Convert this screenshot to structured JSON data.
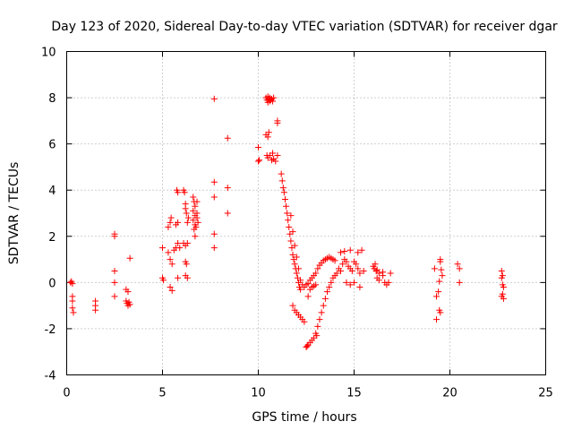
{
  "chart_data": {
    "type": "scatter",
    "title": "Day 123 of 2020, Sidereal Day-to-day VTEC variation (SDTVAR) for receiver dgar",
    "xlabel": "GPS time / hours",
    "ylabel": "SDTVAR / TECUs",
    "xlim": [
      0,
      25
    ],
    "ylim": [
      -4,
      10
    ],
    "xticks": [
      "0",
      "5",
      "10",
      "15",
      "20",
      "25"
    ],
    "yticks": [
      "-4",
      "-2",
      "0",
      "2",
      "4",
      "6",
      "8",
      "10"
    ],
    "grid": true,
    "marker": "+",
    "series_color": "#ff0000",
    "series": [
      {
        "name": "SDTVAR",
        "points": [
          [
            0.2,
            0.0
          ],
          [
            0.25,
            0.05
          ],
          [
            0.3,
            -0.05
          ],
          [
            0.3,
            -0.6
          ],
          [
            0.3,
            -0.8
          ],
          [
            0.3,
            -1.1
          ],
          [
            0.35,
            -1.3
          ],
          [
            1.5,
            -0.8
          ],
          [
            1.5,
            -1.0
          ],
          [
            1.5,
            -1.2
          ],
          [
            2.5,
            2.0
          ],
          [
            2.5,
            2.1
          ],
          [
            2.5,
            0.5
          ],
          [
            2.5,
            0.0
          ],
          [
            2.5,
            -0.6
          ],
          [
            3.1,
            -0.3
          ],
          [
            3.2,
            -0.4
          ],
          [
            3.1,
            -0.8
          ],
          [
            3.15,
            -0.9
          ],
          [
            3.2,
            -1.0
          ],
          [
            3.25,
            -0.85
          ],
          [
            3.3,
            -0.95
          ],
          [
            3.3,
            1.05
          ],
          [
            5.0,
            1.5
          ],
          [
            5.0,
            0.2
          ],
          [
            5.05,
            0.1
          ],
          [
            5.3,
            1.3
          ],
          [
            5.3,
            2.4
          ],
          [
            5.4,
            2.6
          ],
          [
            5.45,
            2.8
          ],
          [
            5.4,
            1.0
          ],
          [
            5.5,
            0.8
          ],
          [
            5.4,
            -0.2
          ],
          [
            5.5,
            -0.35
          ],
          [
            5.6,
            1.4
          ],
          [
            5.7,
            1.5
          ],
          [
            5.7,
            2.5
          ],
          [
            5.8,
            2.6
          ],
          [
            5.8,
            3.9
          ],
          [
            5.75,
            4.0
          ],
          [
            5.8,
            1.7
          ],
          [
            5.8,
            0.2
          ],
          [
            5.9,
            1.5
          ],
          [
            6.1,
            4.0
          ],
          [
            6.15,
            3.9
          ],
          [
            6.2,
            3.4
          ],
          [
            6.2,
            3.2
          ],
          [
            6.25,
            3.0
          ],
          [
            6.1,
            1.7
          ],
          [
            6.2,
            1.6
          ],
          [
            6.3,
            1.7
          ],
          [
            6.2,
            0.9
          ],
          [
            6.25,
            0.8
          ],
          [
            6.2,
            0.3
          ],
          [
            6.3,
            0.2
          ],
          [
            6.3,
            2.6
          ],
          [
            6.35,
            2.8
          ],
          [
            6.6,
            3.7
          ],
          [
            6.65,
            3.5
          ],
          [
            6.7,
            3.3
          ],
          [
            6.6,
            3.1
          ],
          [
            6.7,
            2.9
          ],
          [
            6.6,
            2.7
          ],
          [
            6.7,
            2.5
          ],
          [
            6.65,
            2.3
          ],
          [
            6.75,
            2.4
          ],
          [
            6.8,
            3.5
          ],
          [
            6.8,
            3.0
          ],
          [
            6.85,
            2.6
          ],
          [
            6.7,
            2.0
          ],
          [
            6.8,
            2.8
          ],
          [
            7.7,
            7.95
          ],
          [
            7.7,
            4.35
          ],
          [
            7.7,
            3.7
          ],
          [
            7.7,
            2.1
          ],
          [
            7.7,
            1.5
          ],
          [
            8.4,
            6.25
          ],
          [
            8.4,
            4.1
          ],
          [
            8.4,
            3.0
          ],
          [
            10.0,
            5.85
          ],
          [
            10.05,
            5.3
          ],
          [
            10.0,
            5.25
          ],
          [
            10.4,
            8.0
          ],
          [
            10.45,
            7.9
          ],
          [
            10.5,
            7.8
          ],
          [
            10.5,
            8.05
          ],
          [
            10.55,
            7.95
          ],
          [
            10.6,
            7.85
          ],
          [
            10.6,
            8.0
          ],
          [
            10.65,
            7.9
          ],
          [
            10.7,
            7.95
          ],
          [
            10.75,
            7.85
          ],
          [
            10.8,
            8.0
          ],
          [
            10.4,
            6.4
          ],
          [
            10.5,
            6.3
          ],
          [
            10.55,
            6.5
          ],
          [
            10.45,
            5.5
          ],
          [
            10.5,
            5.4
          ],
          [
            10.6,
            5.5
          ],
          [
            10.7,
            5.3
          ],
          [
            10.75,
            5.6
          ],
          [
            10.8,
            5.35
          ],
          [
            10.9,
            5.25
          ],
          [
            11.0,
            5.5
          ],
          [
            11.0,
            7.0
          ],
          [
            11.0,
            6.9
          ],
          [
            11.2,
            4.7
          ],
          [
            11.25,
            4.4
          ],
          [
            11.3,
            4.1
          ],
          [
            11.35,
            3.9
          ],
          [
            11.4,
            3.6
          ],
          [
            11.45,
            3.3
          ],
          [
            11.5,
            3.0
          ],
          [
            11.55,
            2.7
          ],
          [
            11.6,
            2.4
          ],
          [
            11.65,
            2.1
          ],
          [
            11.7,
            1.8
          ],
          [
            11.75,
            1.5
          ],
          [
            11.8,
            1.2
          ],
          [
            11.85,
            1.0
          ],
          [
            11.9,
            0.8
          ],
          [
            11.95,
            0.6
          ],
          [
            12.0,
            0.4
          ],
          [
            12.05,
            0.2
          ],
          [
            12.1,
            0.0
          ],
          [
            12.15,
            -0.2
          ],
          [
            12.2,
            -0.3
          ],
          [
            11.7,
            2.9
          ],
          [
            11.8,
            2.2
          ],
          [
            11.9,
            1.6
          ],
          [
            12.0,
            1.1
          ],
          [
            12.1,
            0.6
          ],
          [
            12.2,
            0.1
          ],
          [
            11.8,
            -1.0
          ],
          [
            11.9,
            -1.2
          ],
          [
            12.0,
            -1.3
          ],
          [
            12.1,
            -1.4
          ],
          [
            12.2,
            -1.5
          ],
          [
            12.3,
            -1.6
          ],
          [
            12.4,
            -1.7
          ],
          [
            12.3,
            -0.1
          ],
          [
            12.4,
            -0.2
          ],
          [
            12.5,
            -0.1
          ],
          [
            12.6,
            -0.05
          ],
          [
            12.7,
            0.1
          ],
          [
            12.8,
            0.2
          ],
          [
            12.9,
            0.3
          ],
          [
            13.0,
            0.4
          ],
          [
            13.1,
            0.6
          ],
          [
            13.2,
            0.75
          ],
          [
            13.3,
            0.85
          ],
          [
            13.4,
            0.95
          ],
          [
            13.5,
            1.0
          ],
          [
            13.6,
            1.05
          ],
          [
            13.7,
            1.1
          ],
          [
            13.8,
            1.05
          ],
          [
            13.9,
            1.0
          ],
          [
            14.0,
            0.95
          ],
          [
            12.6,
            -0.6
          ],
          [
            12.7,
            -0.3
          ],
          [
            12.8,
            -0.2
          ],
          [
            12.9,
            -0.15
          ],
          [
            13.0,
            -0.1
          ],
          [
            12.6,
            -2.7
          ],
          [
            12.7,
            -2.6
          ],
          [
            12.8,
            -2.5
          ],
          [
            12.9,
            -2.4
          ],
          [
            13.0,
            -2.2
          ],
          [
            13.1,
            -1.9
          ],
          [
            13.2,
            -1.6
          ],
          [
            13.3,
            -1.3
          ],
          [
            13.4,
            -1.0
          ],
          [
            13.5,
            -0.7
          ],
          [
            13.6,
            -0.4
          ],
          [
            13.7,
            -0.2
          ],
          [
            13.8,
            0.0
          ],
          [
            13.9,
            0.2
          ],
          [
            12.5,
            -2.8
          ],
          [
            12.55,
            -2.75
          ],
          [
            13.05,
            -2.3
          ],
          [
            14.0,
            0.3
          ],
          [
            14.1,
            0.4
          ],
          [
            14.2,
            0.6
          ],
          [
            14.3,
            0.5
          ],
          [
            14.4,
            0.8
          ],
          [
            14.5,
            1.0
          ],
          [
            14.6,
            0.9
          ],
          [
            14.7,
            0.7
          ],
          [
            14.8,
            0.6
          ],
          [
            14.9,
            0.5
          ],
          [
            14.3,
            1.3
          ],
          [
            14.5,
            1.35
          ],
          [
            14.8,
            1.4
          ],
          [
            15.0,
            0.9
          ],
          [
            15.1,
            0.8
          ],
          [
            15.2,
            0.6
          ],
          [
            15.3,
            0.4
          ],
          [
            15.5,
            0.5
          ],
          [
            15.2,
            1.3
          ],
          [
            15.4,
            1.4
          ],
          [
            14.6,
            0.0
          ],
          [
            14.8,
            -0.1
          ],
          [
            15.0,
            0.0
          ],
          [
            15.3,
            -0.2
          ],
          [
            16.0,
            0.7
          ],
          [
            16.05,
            0.6
          ],
          [
            16.1,
            0.8
          ],
          [
            16.15,
            0.5
          ],
          [
            16.2,
            0.55
          ],
          [
            16.3,
            0.4
          ],
          [
            16.5,
            0.3
          ],
          [
            16.6,
            0.0
          ],
          [
            16.7,
            -0.1
          ],
          [
            16.8,
            0.0
          ],
          [
            16.9,
            0.4
          ],
          [
            16.2,
            0.2
          ],
          [
            16.3,
            0.1
          ],
          [
            16.5,
            0.45
          ],
          [
            19.2,
            0.6
          ],
          [
            19.3,
            -0.6
          ],
          [
            19.4,
            -0.4
          ],
          [
            19.3,
            -1.6
          ],
          [
            19.45,
            -1.2
          ],
          [
            19.5,
            -1.3
          ],
          [
            19.5,
            1.0
          ],
          [
            19.5,
            0.9
          ],
          [
            19.6,
            0.3
          ],
          [
            19.55,
            0.55
          ],
          [
            19.45,
            0.05
          ],
          [
            20.4,
            0.8
          ],
          [
            20.5,
            0.6
          ],
          [
            20.5,
            0.0
          ],
          [
            22.7,
            0.5
          ],
          [
            22.75,
            0.3
          ],
          [
            22.7,
            0.2
          ],
          [
            22.8,
            -0.2
          ],
          [
            22.75,
            -0.5
          ],
          [
            22.7,
            -0.6
          ],
          [
            22.8,
            -0.7
          ],
          [
            22.75,
            -0.1
          ]
        ]
      }
    ]
  }
}
